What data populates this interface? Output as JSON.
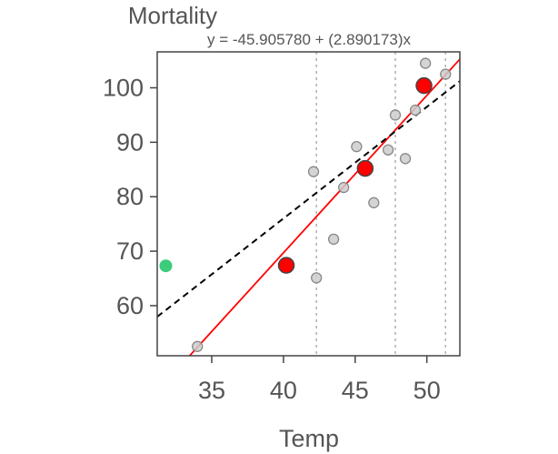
{
  "chart_data": {
    "type": "scatter",
    "title": "Mortality",
    "subtitle": "y = -45.905780 + (2.890173)x",
    "xlabel": "Temp",
    "ylabel": "Mortality",
    "xlim": [
      31.2,
      52.3
    ],
    "ylim": [
      50.8,
      106.6
    ],
    "xticks": [
      35,
      40,
      45,
      50
    ],
    "yticks": [
      60,
      70,
      80,
      90,
      100
    ],
    "grid": false,
    "series": [
      {
        "role": "observations",
        "color": "#cccccc",
        "points": [
          {
            "x": 34.0,
            "y": 52.5
          },
          {
            "x": 42.1,
            "y": 84.6
          },
          {
            "x": 42.3,
            "y": 65.1
          },
          {
            "x": 43.5,
            "y": 72.2
          },
          {
            "x": 44.2,
            "y": 81.7
          },
          {
            "x": 45.1,
            "y": 89.2
          },
          {
            "x": 46.3,
            "y": 78.9
          },
          {
            "x": 47.3,
            "y": 88.6
          },
          {
            "x": 47.8,
            "y": 95.0
          },
          {
            "x": 48.5,
            "y": 87.0
          },
          {
            "x": 49.2,
            "y": 95.9
          },
          {
            "x": 49.9,
            "y": 104.5
          },
          {
            "x": 51.3,
            "y": 102.5
          }
        ]
      },
      {
        "role": "group-means",
        "color": "#ff0000",
        "points": [
          {
            "x": 40.2,
            "y": 67.4
          },
          {
            "x": 45.7,
            "y": 85.2
          },
          {
            "x": 49.8,
            "y": 100.4
          }
        ]
      },
      {
        "role": "highlight",
        "color": "#3ccc7a",
        "points": [
          {
            "x": 31.8,
            "y": 67.3
          }
        ]
      }
    ],
    "lines": [
      {
        "role": "fit",
        "style": "solid",
        "color": "#ff0000",
        "intercept": -45.90578,
        "slope": 2.890173
      },
      {
        "role": "reference",
        "style": "dashed",
        "color": "#000000",
        "intercept": -6.0,
        "slope": 2.05
      }
    ],
    "vlines": [
      42.3,
      47.8,
      51.3
    ]
  }
}
